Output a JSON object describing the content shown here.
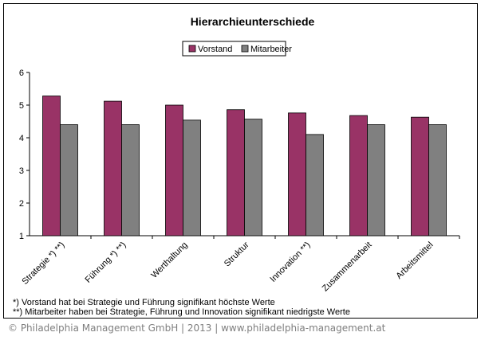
{
  "chart_data": {
    "type": "bar",
    "title": "Hierarchieunterschiede",
    "categories": [
      "Strategie *) **)",
      "Führung *) **)",
      "Werthaltung",
      "Struktur",
      "Innovation **)",
      "Zusammenarbeit",
      "Arbeitsmittel"
    ],
    "series": [
      {
        "name": "Vorstand",
        "color": "#993366",
        "values": [
          5.28,
          5.12,
          5.0,
          4.86,
          4.76,
          4.68,
          4.63
        ]
      },
      {
        "name": "Mitarbeiter",
        "color": "#808080",
        "values": [
          4.4,
          4.4,
          4.54,
          4.57,
          4.1,
          4.4,
          4.4
        ]
      }
    ],
    "ylim": [
      1,
      6
    ],
    "yticks": [
      "1",
      "2",
      "3",
      "4",
      "5",
      "6"
    ],
    "xlabel": "",
    "ylabel": "",
    "grid": false,
    "legend": "top-center"
  },
  "footnotes": [
    "*) Vorstand hat bei Strategie und Führung signifikant höchste Werte",
    "**) Mitarbeiter haben bei Strategie, Führung und Innovation signifikant niedrigste Werte"
  ],
  "copyright": "© Philadelphia Management GmbH | 2013 | www.philadelphia-management.at"
}
